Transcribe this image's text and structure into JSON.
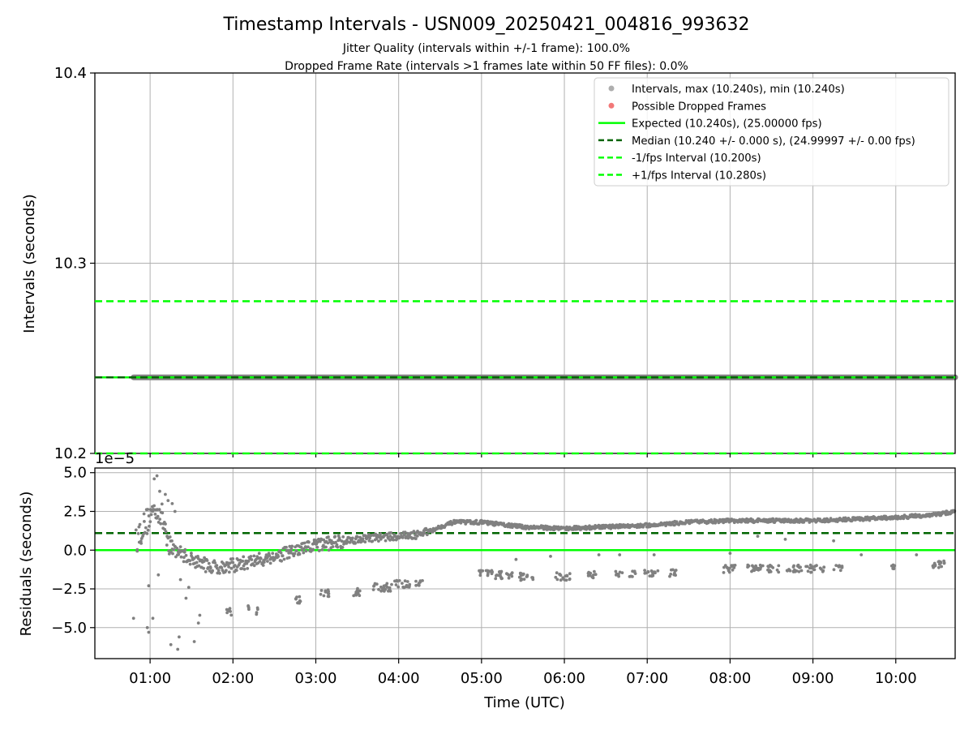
{
  "title": "Timestamp Intervals - USN009_20250421_004816_993632",
  "subtitle_1": "Jitter Quality (intervals within +/-1 frame): 100.0%",
  "subtitle_2": "Dropped Frame Rate (intervals >1 frames late within 50 FF files): 0.0%",
  "colors": {
    "points": "#808080",
    "dropped": "#f06060",
    "expected": "#00ff00",
    "median": "#006400",
    "bounds": "#00ff00",
    "grid": "#b0b0b0"
  },
  "chart_data": [
    {
      "type": "scatter",
      "ylabel": "Intervals (seconds)",
      "ylim": [
        10.2,
        10.4
      ],
      "yticks": [
        10.2,
        10.3,
        10.4
      ],
      "ytick_labels": [
        "10.2",
        "10.3",
        "10.4"
      ],
      "xlim": [
        "00:20",
        "10:43"
      ],
      "xticks": [
        "01:00",
        "02:00",
        "03:00",
        "04:00",
        "05:00",
        "06:00",
        "07:00",
        "08:00",
        "09:00",
        "10:00"
      ],
      "grid": true,
      "legend_position": "top-right",
      "legend": [
        {
          "label": "Intervals, max (10.240s), min (10.240s)",
          "kind": "marker",
          "color": "#a0a0a0"
        },
        {
          "label": "Possible Dropped Frames",
          "kind": "marker",
          "color": "#f06060"
        },
        {
          "label": "Expected (10.240s), (25.00000 fps)",
          "kind": "solid",
          "color": "#00ff00"
        },
        {
          "label": "Median (10.240 +/- 0.000 s), (24.99997 +/- 0.00 fps)",
          "kind": "dashed",
          "color": "#006400"
        },
        {
          "label": "-1/fps Interval (10.200s)",
          "kind": "dashed",
          "color": "#00ff00"
        },
        {
          "label": "+1/fps Interval (10.280s)",
          "kind": "dashed",
          "color": "#00ff00"
        }
      ],
      "series": [
        {
          "name": "Intervals",
          "x_range": [
            "00:48",
            "10:43"
          ],
          "y": 10.24
        },
        {
          "name": "Expected",
          "y": 10.24
        },
        {
          "name": "Median",
          "y": 10.24
        },
        {
          "name": "-1/fps Interval",
          "y": 10.2
        },
        {
          "name": "+1/fps Interval",
          "y": 10.28
        }
      ]
    },
    {
      "type": "scatter",
      "xlabel": "Time (UTC)",
      "ylabel": "Residuals (seconds)",
      "offset_label": "1e−5",
      "ylim": [
        -7,
        5.3
      ],
      "yticks": [
        -5.0,
        -2.5,
        0.0,
        2.5,
        5.0
      ],
      "ytick_labels": [
        "−5.0",
        "−2.5",
        "0.0",
        "2.5",
        "5.0"
      ],
      "xlim": [
        "00:20",
        "10:43"
      ],
      "xticks": [
        "01:00",
        "02:00",
        "03:00",
        "04:00",
        "05:00",
        "06:00",
        "07:00",
        "08:00",
        "09:00",
        "10:00"
      ],
      "grid": true,
      "median_residual": 1.1,
      "expected_residual": 0.0,
      "main_band": [
        {
          "t": "00:50",
          "y": 0.7
        },
        {
          "t": "00:55",
          "y": 1.5
        },
        {
          "t": "01:00",
          "y": 2.2
        },
        {
          "t": "01:05",
          "y": 2.8
        },
        {
          "t": "01:10",
          "y": 1.8
        },
        {
          "t": "01:15",
          "y": 0.2
        },
        {
          "t": "01:30",
          "y": -0.6
        },
        {
          "t": "01:45",
          "y": -1.1
        },
        {
          "t": "02:00",
          "y": -1.0
        },
        {
          "t": "02:20",
          "y": -0.6
        },
        {
          "t": "02:40",
          "y": -0.2
        },
        {
          "t": "03:00",
          "y": 0.3
        },
        {
          "t": "03:20",
          "y": 0.6
        },
        {
          "t": "03:40",
          "y": 0.8
        },
        {
          "t": "04:00",
          "y": 0.9
        },
        {
          "t": "04:15",
          "y": 1.0
        },
        {
          "t": "04:30",
          "y": 1.5
        },
        {
          "t": "04:40",
          "y": 1.8
        },
        {
          "t": "05:00",
          "y": 1.8
        },
        {
          "t": "05:30",
          "y": 1.5
        },
        {
          "t": "06:00",
          "y": 1.4
        },
        {
          "t": "06:30",
          "y": 1.5
        },
        {
          "t": "07:00",
          "y": 1.6
        },
        {
          "t": "07:30",
          "y": 1.8
        },
        {
          "t": "08:00",
          "y": 1.9
        },
        {
          "t": "08:30",
          "y": 1.9
        },
        {
          "t": "09:00",
          "y": 1.9
        },
        {
          "t": "09:30",
          "y": 2.0
        },
        {
          "t": "10:00",
          "y": 2.1
        },
        {
          "t": "10:30",
          "y": 2.3
        },
        {
          "t": "10:43",
          "y": 2.5
        }
      ],
      "secondary_clusters": [
        {
          "t_start": "01:55",
          "t_end": "02:00",
          "y": -4.0
        },
        {
          "t_start": "02:10",
          "t_end": "02:12",
          "y": -3.6
        },
        {
          "t_start": "02:17",
          "t_end": "02:19",
          "y": -3.9
        },
        {
          "t_start": "02:44",
          "t_end": "02:50",
          "y": -3.2
        },
        {
          "t_start": "03:03",
          "t_end": "03:10",
          "y": -2.8
        },
        {
          "t_start": "03:26",
          "t_end": "03:32",
          "y": -2.7
        },
        {
          "t_start": "03:40",
          "t_end": "03:55",
          "y": -2.4
        },
        {
          "t_start": "03:57",
          "t_end": "04:08",
          "y": -2.2
        },
        {
          "t_start": "04:12",
          "t_end": "04:18",
          "y": -2.2
        },
        {
          "t_start": "04:58",
          "t_end": "05:08",
          "y": -1.5
        },
        {
          "t_start": "05:10",
          "t_end": "05:24",
          "y": -1.6
        },
        {
          "t_start": "05:27",
          "t_end": "05:38",
          "y": -1.7
        },
        {
          "t_start": "05:53",
          "t_end": "06:04",
          "y": -1.7
        },
        {
          "t_start": "06:17",
          "t_end": "06:23",
          "y": -1.6
        },
        {
          "t_start": "06:37",
          "t_end": "06:42",
          "y": -1.6
        },
        {
          "t_start": "06:47",
          "t_end": "06:52",
          "y": -1.6
        },
        {
          "t_start": "06:58",
          "t_end": "07:08",
          "y": -1.5
        },
        {
          "t_start": "07:15",
          "t_end": "07:21",
          "y": -1.5
        },
        {
          "t_start": "07:55",
          "t_end": "08:04",
          "y": -1.2
        },
        {
          "t_start": "08:12",
          "t_end": "08:24",
          "y": -1.2
        },
        {
          "t_start": "08:27",
          "t_end": "08:36",
          "y": -1.2
        },
        {
          "t_start": "08:41",
          "t_end": "08:52",
          "y": -1.2
        },
        {
          "t_start": "08:55",
          "t_end": "09:08",
          "y": -1.2
        },
        {
          "t_start": "09:15",
          "t_end": "09:22",
          "y": -1.2
        },
        {
          "t_start": "09:57",
          "t_end": "10:01",
          "y": -1.0
        },
        {
          "t_start": "10:26",
          "t_end": "10:36",
          "y": -0.9
        }
      ],
      "outliers": [
        {
          "t": "00:48",
          "y": -4.4
        },
        {
          "t": "00:58",
          "y": -5.0
        },
        {
          "t": "00:59",
          "y": -5.3
        },
        {
          "t": "01:02",
          "y": -4.4
        },
        {
          "t": "01:15",
          "y": -6.1
        },
        {
          "t": "01:20",
          "y": -6.4
        },
        {
          "t": "01:21",
          "y": -5.6
        },
        {
          "t": "01:26",
          "y": -3.1
        },
        {
          "t": "01:28",
          "y": -2.4
        },
        {
          "t": "01:32",
          "y": -5.9
        },
        {
          "t": "01:35",
          "y": -4.7
        },
        {
          "t": "01:36",
          "y": -4.2
        },
        {
          "t": "01:03",
          "y": 4.6
        },
        {
          "t": "01:05",
          "y": 4.8
        },
        {
          "t": "01:07",
          "y": 3.8
        },
        {
          "t": "01:11",
          "y": 3.6
        },
        {
          "t": "01:13",
          "y": 3.2
        },
        {
          "t": "01:16",
          "y": 3.0
        },
        {
          "t": "01:18",
          "y": 2.5
        },
        {
          "t": "00:59",
          "y": -2.3
        },
        {
          "t": "01:06",
          "y": -1.6
        },
        {
          "t": "01:22",
          "y": -1.9
        },
        {
          "t": "05:25",
          "y": -0.6
        },
        {
          "t": "05:50",
          "y": -0.4
        },
        {
          "t": "06:25",
          "y": -0.3
        },
        {
          "t": "06:40",
          "y": -0.3
        },
        {
          "t": "07:05",
          "y": -0.3
        },
        {
          "t": "08:00",
          "y": -0.2
        },
        {
          "t": "08:20",
          "y": 0.9
        },
        {
          "t": "08:40",
          "y": 0.7
        },
        {
          "t": "09:15",
          "y": 0.6
        },
        {
          "t": "09:35",
          "y": -0.3
        },
        {
          "t": "10:15",
          "y": -0.3
        }
      ]
    }
  ]
}
